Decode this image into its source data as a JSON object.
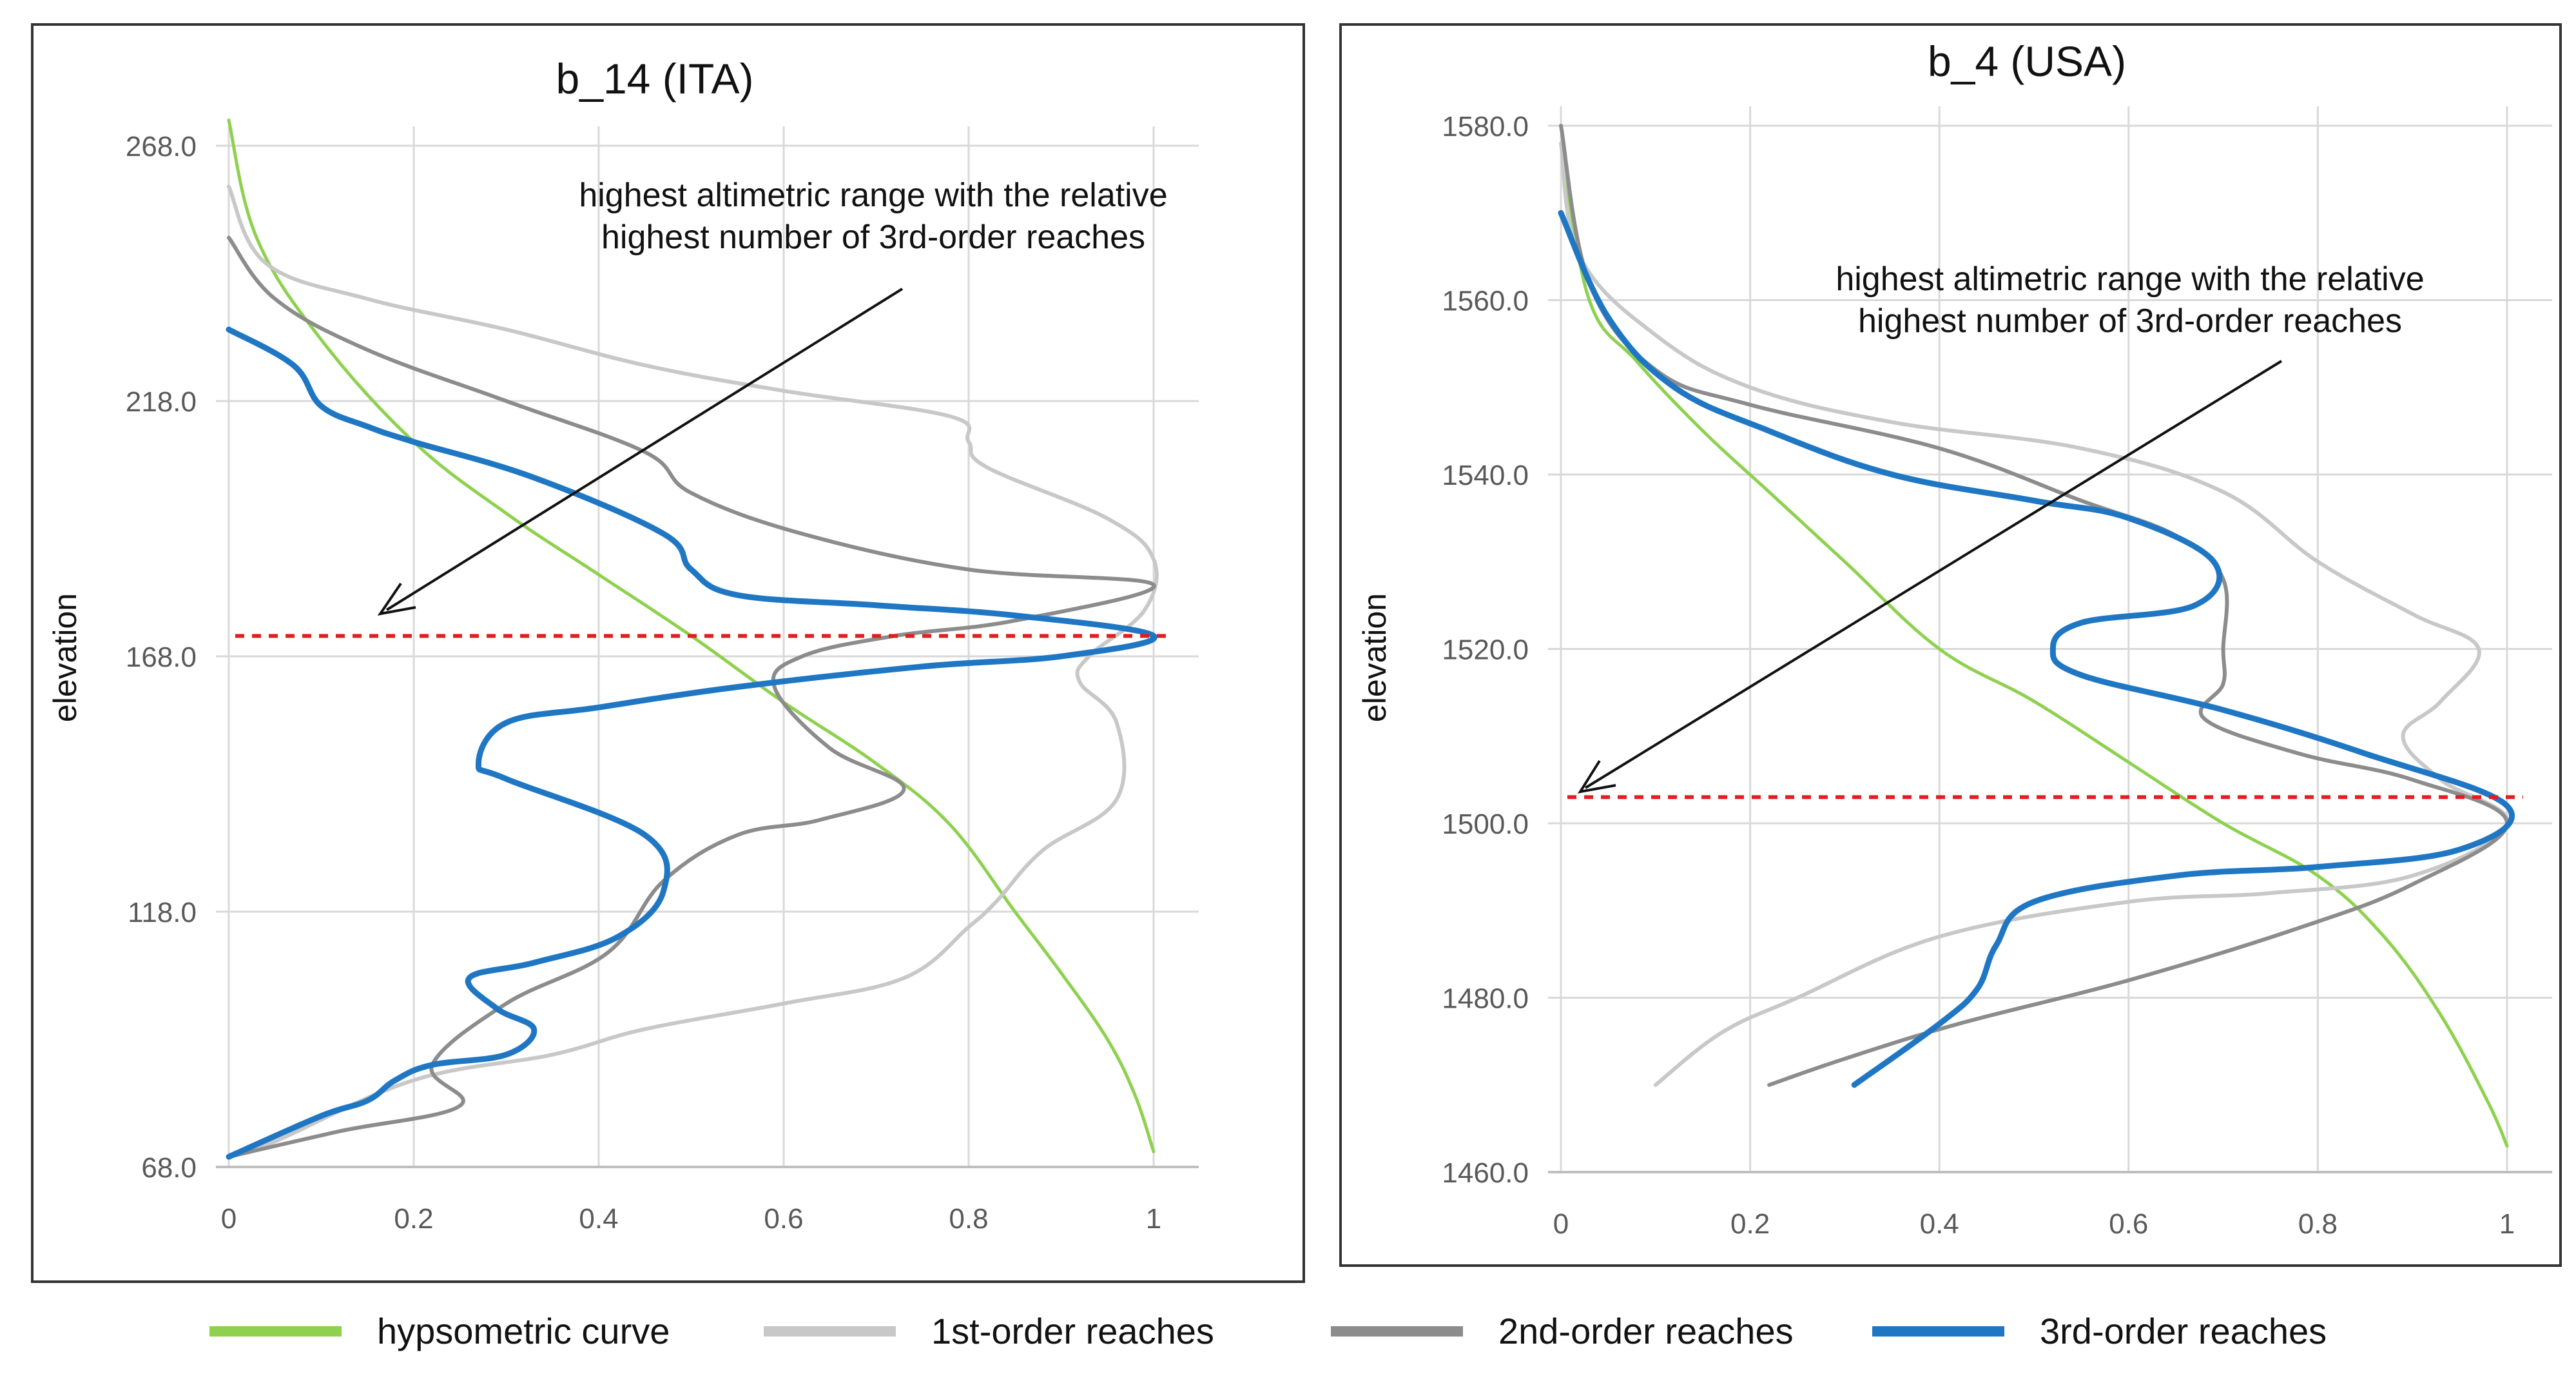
{
  "colors": {
    "hypsometric": "#8ed14f",
    "first": "#c8c8c8",
    "second": "#8c8c8c",
    "third": "#1f77c4",
    "threshold": "#e02020",
    "grid": "#d9d9d9",
    "frame": "#333333"
  },
  "legend": [
    {
      "key": "hypsometric",
      "label": "hypsometric curve"
    },
    {
      "key": "first",
      "label": "1st-order reaches"
    },
    {
      "key": "second",
      "label": "2nd-order reaches"
    },
    {
      "key": "third",
      "label": "3rd-order reaches"
    }
  ],
  "chart_data": [
    {
      "type": "line",
      "title": "b_14 (ITA)",
      "ylabel": "elevation",
      "xlabel": "",
      "xlim": [
        0,
        1
      ],
      "ylim": [
        68,
        268
      ],
      "xticks": [
        "0",
        "0.2",
        "0.4",
        "0.6",
        "0.8",
        "1"
      ],
      "yticks": [
        "68.0",
        "118.0",
        "168.0",
        "218.0",
        "268.0"
      ],
      "threshold_elevation": 172,
      "annotation": {
        "lines": [
          "highest altimetric range with the relative",
          "highest number of 3rd-order reaches"
        ]
      },
      "series": [
        {
          "key": "hypsometric",
          "name": "hypsometric curve",
          "points": [
            [
              0,
              273
            ],
            [
              0.03,
              250
            ],
            [
              0.1,
              230
            ],
            [
              0.2,
              210
            ],
            [
              0.3,
              196
            ],
            [
              0.4,
              184
            ],
            [
              0.5,
              172
            ],
            [
              0.6,
              159
            ],
            [
              0.7,
              147
            ],
            [
              0.78,
              135
            ],
            [
              0.85,
              118
            ],
            [
              0.9,
              106
            ],
            [
              0.95,
              93
            ],
            [
              0.98,
              82
            ],
            [
              1,
              71
            ]
          ]
        },
        {
          "key": "first",
          "name": "1st-order reaches",
          "points": [
            [
              0,
              260
            ],
            [
              0.04,
              245
            ],
            [
              0.15,
              238
            ],
            [
              0.3,
              232
            ],
            [
              0.45,
              225
            ],
            [
              0.6,
              220
            ],
            [
              0.78,
              215
            ],
            [
              0.8,
              210
            ],
            [
              0.82,
              205
            ],
            [
              0.95,
              195
            ],
            [
              1,
              187
            ],
            [
              0.99,
              177
            ],
            [
              0.93,
              168
            ],
            [
              0.92,
              163
            ],
            [
              0.96,
              155
            ],
            [
              0.96,
              140
            ],
            [
              0.88,
              130
            ],
            [
              0.83,
              120
            ],
            [
              0.8,
              115
            ],
            [
              0.73,
              105
            ],
            [
              0.6,
              100
            ],
            [
              0.45,
              95
            ],
            [
              0.35,
              90
            ],
            [
              0.2,
              85
            ],
            [
              0.05,
              73
            ],
            [
              0,
              70
            ]
          ]
        },
        {
          "key": "second",
          "name": "2nd-order reaches",
          "points": [
            [
              0,
              250
            ],
            [
              0.05,
              238
            ],
            [
              0.15,
              228
            ],
            [
              0.3,
              218
            ],
            [
              0.45,
              208
            ],
            [
              0.5,
              200
            ],
            [
              0.62,
              192
            ],
            [
              0.8,
              185
            ],
            [
              1,
              182
            ],
            [
              0.85,
              175
            ],
            [
              0.72,
              172
            ],
            [
              0.62,
              168
            ],
            [
              0.59,
              162
            ],
            [
              0.65,
              150
            ],
            [
              0.73,
              142
            ],
            [
              0.64,
              136
            ],
            [
              0.55,
              133
            ],
            [
              0.47,
              124
            ],
            [
              0.41,
              110
            ],
            [
              0.3,
              100
            ],
            [
              0.22,
              88
            ],
            [
              0.25,
              80
            ],
            [
              0.12,
              75
            ],
            [
              0,
              70
            ]
          ]
        },
        {
          "key": "third",
          "name": "3rd-order reaches",
          "points": [
            [
              0,
              232
            ],
            [
              0.07,
              225
            ],
            [
              0.1,
              217
            ],
            [
              0.15,
              213
            ],
            [
              0.2,
              210
            ],
            [
              0.33,
              203
            ],
            [
              0.47,
              192
            ],
            [
              0.5,
              185
            ],
            [
              0.55,
              180
            ],
            [
              0.7,
              178
            ],
            [
              0.85,
              176
            ],
            [
              1,
              172
            ],
            [
              0.9,
              168
            ],
            [
              0.75,
              166
            ],
            [
              0.55,
              162
            ],
            [
              0.4,
              158
            ],
            [
              0.3,
              155
            ],
            [
              0.27,
              147
            ],
            [
              0.3,
              144
            ],
            [
              0.45,
              133
            ],
            [
              0.47,
              122
            ],
            [
              0.42,
              113
            ],
            [
              0.33,
              108
            ],
            [
              0.26,
              105
            ],
            [
              0.29,
              99
            ],
            [
              0.33,
              95
            ],
            [
              0.3,
              90
            ],
            [
              0.22,
              88
            ],
            [
              0.18,
              85
            ],
            [
              0.15,
              81
            ],
            [
              0.1,
              78
            ],
            [
              0,
              70
            ]
          ]
        }
      ]
    },
    {
      "type": "line",
      "title": "b_4 (USA)",
      "ylabel": "elevation",
      "xlabel": "",
      "xlim": [
        0,
        1
      ],
      "ylim": [
        1460,
        1580
      ],
      "xticks": [
        "0",
        "0.2",
        "0.4",
        "0.6",
        "0.8",
        "1"
      ],
      "yticks": [
        "1460.0",
        "1480.0",
        "1500.0",
        "1520.0",
        "1540.0",
        "1560.0",
        "1580.0"
      ],
      "threshold_elevation": 1503,
      "annotation": {
        "lines": [
          "highest altimetric range with the relative",
          "highest number of 3rd-order reaches"
        ]
      },
      "series": [
        {
          "key": "hypsometric",
          "name": "hypsometric curve",
          "points": [
            [
              0,
              1578
            ],
            [
              0.03,
              1560
            ],
            [
              0.08,
              1553
            ],
            [
              0.15,
              1545
            ],
            [
              0.22,
              1538
            ],
            [
              0.3,
              1530
            ],
            [
              0.4,
              1520
            ],
            [
              0.5,
              1514
            ],
            [
              0.6,
              1507
            ],
            [
              0.7,
              1500
            ],
            [
              0.8,
              1494
            ],
            [
              0.87,
              1487
            ],
            [
              0.93,
              1478
            ],
            [
              0.98,
              1468
            ],
            [
              1,
              1463
            ]
          ]
        },
        {
          "key": "first",
          "name": "1st-order reaches",
          "points": [
            [
              0,
              1578
            ],
            [
              0.02,
              1565
            ],
            [
              0.1,
              1556
            ],
            [
              0.2,
              1550
            ],
            [
              0.35,
              1546
            ],
            [
              0.55,
              1543
            ],
            [
              0.7,
              1538
            ],
            [
              0.8,
              1530
            ],
            [
              0.9,
              1524
            ],
            [
              0.97,
              1520
            ],
            [
              0.93,
              1514
            ],
            [
              0.89,
              1510
            ],
            [
              0.93,
              1505
            ],
            [
              1,
              1500
            ],
            [
              0.9,
              1494
            ],
            [
              0.75,
              1492
            ],
            [
              0.6,
              1491
            ],
            [
              0.4,
              1487
            ],
            [
              0.25,
              1480
            ],
            [
              0.17,
              1476
            ],
            [
              0.1,
              1470
            ]
          ]
        },
        {
          "key": "second",
          "name": "2nd-order reaches",
          "points": [
            [
              0,
              1580
            ],
            [
              0.03,
              1562
            ],
            [
              0.1,
              1552
            ],
            [
              0.2,
              1548
            ],
            [
              0.4,
              1543
            ],
            [
              0.55,
              1537
            ],
            [
              0.65,
              1533
            ],
            [
              0.7,
              1528
            ],
            [
              0.7,
              1520
            ],
            [
              0.7,
              1516
            ],
            [
              0.68,
              1512
            ],
            [
              0.78,
              1508
            ],
            [
              0.9,
              1505
            ],
            [
              1,
              1500
            ],
            [
              0.9,
              1493
            ],
            [
              0.78,
              1488
            ],
            [
              0.6,
              1482
            ],
            [
              0.42,
              1477
            ],
            [
              0.3,
              1473
            ],
            [
              0.22,
              1470
            ]
          ]
        },
        {
          "key": "third",
          "name": "3rd-order reaches",
          "points": [
            [
              0,
              1570
            ],
            [
              0.05,
              1558
            ],
            [
              0.12,
              1550
            ],
            [
              0.22,
              1545
            ],
            [
              0.35,
              1540
            ],
            [
              0.5,
              1537
            ],
            [
              0.6,
              1535
            ],
            [
              0.69,
              1530
            ],
            [
              0.67,
              1525
            ],
            [
              0.55,
              1523
            ],
            [
              0.52,
              1520
            ],
            [
              0.55,
              1517
            ],
            [
              0.7,
              1513
            ],
            [
              0.85,
              1508
            ],
            [
              1,
              1502
            ],
            [
              0.95,
              1497
            ],
            [
              0.8,
              1495
            ],
            [
              0.65,
              1494
            ],
            [
              0.5,
              1491
            ],
            [
              0.46,
              1486
            ],
            [
              0.44,
              1481
            ],
            [
              0.4,
              1477
            ],
            [
              0.31,
              1470
            ]
          ]
        }
      ]
    }
  ]
}
